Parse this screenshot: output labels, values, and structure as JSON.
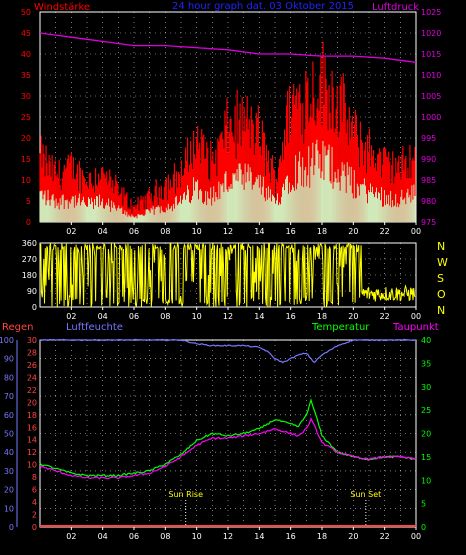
{
  "colors": {
    "wind": "#ff0000",
    "gust": "#ff0000",
    "windavg": "#ccffcc",
    "pressure": "#dd00dd",
    "direction": "#ffff00",
    "humidity": "#7777ff",
    "temperature": "#00ff00",
    "dewpoint": "#ff00ff",
    "rain": "#ff4444",
    "grid": "#ffffff",
    "title": "#2222ff"
  },
  "chart_data": [
    {
      "type": "line",
      "title": "24 hour graph dat. 03 Oktober 2015",
      "left_axis_label": "Windstärke",
      "right_axis_label": "Luftdruck",
      "x_ticks": [
        "02",
        "04",
        "06",
        "08",
        "10",
        "12",
        "14",
        "16",
        "18",
        "20",
        "22",
        "00"
      ],
      "y_left_ticks": [
        "0",
        "5",
        "10",
        "15",
        "20",
        "25",
        "30",
        "35",
        "40",
        "45",
        "50"
      ],
      "y_left_range": [
        0,
        50
      ],
      "y_right_ticks": [
        "975",
        "980",
        "985",
        "990",
        "995",
        "1000",
        "1005",
        "1010",
        "1015",
        "1020",
        "1025"
      ],
      "y_right_range": [
        975,
        1025
      ],
      "grid": true,
      "series": [
        {
          "name": "Windstärke",
          "x": [
            0,
            1,
            2,
            3,
            4,
            5,
            6,
            7,
            8,
            9,
            10,
            11,
            12,
            13,
            14,
            15,
            16,
            17,
            18,
            19,
            20,
            21,
            22,
            23,
            24
          ],
          "values": [
            11,
            8,
            9,
            7,
            8,
            5,
            2,
            4,
            6,
            8,
            14,
            10,
            16,
            17,
            15,
            7,
            20,
            22,
            24,
            21,
            15,
            12,
            10,
            9,
            11
          ]
        },
        {
          "name": "Luftdruck",
          "x": [
            0,
            2,
            4,
            6,
            8,
            10,
            12,
            14,
            16,
            18,
            20,
            22,
            23,
            24
          ],
          "values": [
            1020,
            1019,
            1018,
            1017,
            1017,
            1016.5,
            1016,
            1015,
            1015,
            1014.5,
            1014.5,
            1014,
            1013.5,
            1013
          ]
        }
      ]
    },
    {
      "type": "scatter",
      "right_labels": [
        "N",
        "W",
        "S",
        "O",
        "N"
      ],
      "y_ticks": [
        "0",
        "90",
        "180",
        "270",
        "360"
      ],
      "y_range": [
        0,
        360
      ],
      "x_ticks": [
        "02",
        "04",
        "06",
        "08",
        "10",
        "12",
        "14",
        "16",
        "18",
        "20",
        "22",
        "00"
      ],
      "grid": true,
      "series": [
        {
          "name": "Windrichtung"
        }
      ]
    },
    {
      "type": "line",
      "series_labels": {
        "rain": "Regen",
        "humidity": "Luftfeuchte",
        "temperature": "Temperatur",
        "dewpoint": "Taupunkt"
      },
      "x_ticks": [
        "02",
        "04",
        "06",
        "08",
        "10",
        "12",
        "14",
        "16",
        "18",
        "20",
        "22",
        "00"
      ],
      "humidity_ticks": [
        "0",
        "10",
        "20",
        "30",
        "40",
        "50",
        "60",
        "70",
        "80",
        "90",
        "100"
      ],
      "humidity_range": [
        0,
        100
      ],
      "rain_ticks": [
        "0",
        "2",
        "4",
        "6",
        "8",
        "10",
        "12",
        "14",
        "16",
        "18",
        "20",
        "22",
        "24",
        "26",
        "28",
        "30"
      ],
      "rain_range": [
        0,
        30
      ],
      "temp_ticks": [
        "0",
        "5",
        "10",
        "15",
        "20",
        "25",
        "30",
        "35",
        "40"
      ],
      "temp_range": [
        0,
        40
      ],
      "annotations": {
        "sunrise": "Sun Rise",
        "sunset": "Sun Set"
      },
      "sunrise_hour": 9.3,
      "sunset_hour": 20.8,
      "grid": true,
      "series": [
        {
          "name": "Luftfeuchte",
          "x": [
            0,
            1,
            2,
            3,
            4,
            5,
            6,
            7,
            8,
            9,
            10,
            11,
            12,
            13,
            14,
            14.5,
            15,
            15.5,
            16,
            16.5,
            17,
            17.5,
            18,
            19,
            20,
            21,
            22,
            23,
            24
          ],
          "values": [
            100,
            100,
            100,
            100,
            100,
            100,
            100,
            100,
            100,
            100,
            98,
            97,
            97,
            97,
            96,
            94,
            90,
            88,
            90,
            92,
            93,
            88,
            92,
            97,
            100,
            100,
            100,
            100,
            100
          ]
        },
        {
          "name": "Temperatur",
          "x": [
            0,
            1,
            2,
            3,
            4,
            5,
            6,
            7,
            8,
            9,
            10,
            11,
            12,
            13,
            14,
            15,
            16,
            16.5,
            17,
            17.3,
            17.6,
            18,
            19,
            20,
            21,
            22,
            23,
            24
          ],
          "values": [
            13.5,
            12.5,
            11.5,
            11,
            11,
            11,
            11.5,
            12,
            13.5,
            15.5,
            18.5,
            20,
            19.5,
            20,
            21,
            23,
            22,
            21.5,
            24,
            27,
            24,
            19.5,
            16,
            15,
            14.5,
            15,
            15,
            14.5
          ]
        },
        {
          "name": "Taupunkt",
          "x": [
            0,
            1,
            2,
            3,
            4,
            5,
            6,
            7,
            8,
            9,
            10,
            11,
            12,
            13,
            14,
            15,
            16,
            16.5,
            17,
            17.3,
            17.6,
            18,
            19,
            20,
            21,
            22,
            23,
            24
          ],
          "values": [
            13,
            12,
            11,
            10.5,
            10.5,
            10.5,
            11,
            11.5,
            13,
            15,
            17.5,
            19,
            19,
            19.5,
            20,
            21,
            20,
            19.5,
            21,
            23,
            21,
            18,
            16,
            15,
            14.5,
            15,
            15,
            14.5
          ]
        },
        {
          "name": "Regen",
          "x": [
            0,
            24
          ],
          "values": [
            0,
            0
          ]
        }
      ]
    }
  ]
}
